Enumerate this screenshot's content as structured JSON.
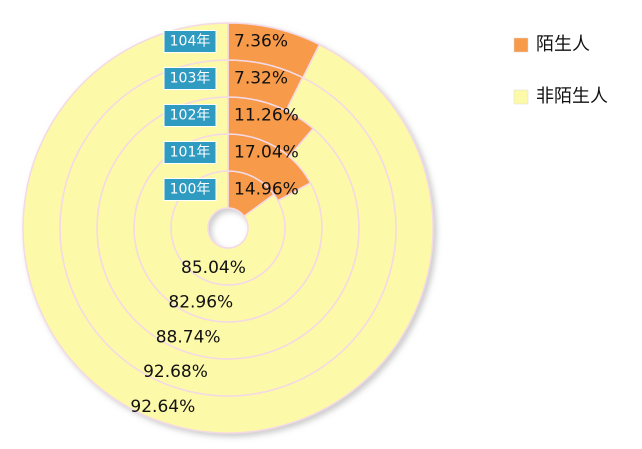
{
  "chart_data": {
    "type": "nested-donut",
    "categories": [
      "陌生人",
      "非陌生人"
    ],
    "colors": [
      "#f79a4a",
      "#fcf9a8"
    ],
    "series": [
      {
        "name": "100年",
        "values": [
          14.96,
          85.04
        ],
        "value_labels": [
          "14.96%",
          "85.04%"
        ]
      },
      {
        "name": "101年",
        "values": [
          17.04,
          82.96
        ],
        "value_labels": [
          "17.04%",
          "82.96%"
        ]
      },
      {
        "name": "102年",
        "values": [
          11.26,
          88.74
        ],
        "value_labels": [
          "11.26%",
          "88.74%"
        ]
      },
      {
        "name": "103年",
        "values": [
          7.32,
          92.68
        ],
        "value_labels": [
          "7.32%",
          "92.68%"
        ]
      },
      {
        "name": "104年",
        "values": [
          7.36,
          92.64
        ],
        "value_labels": [
          "7.36%",
          "92.64%"
        ]
      }
    ],
    "legend": "right"
  }
}
